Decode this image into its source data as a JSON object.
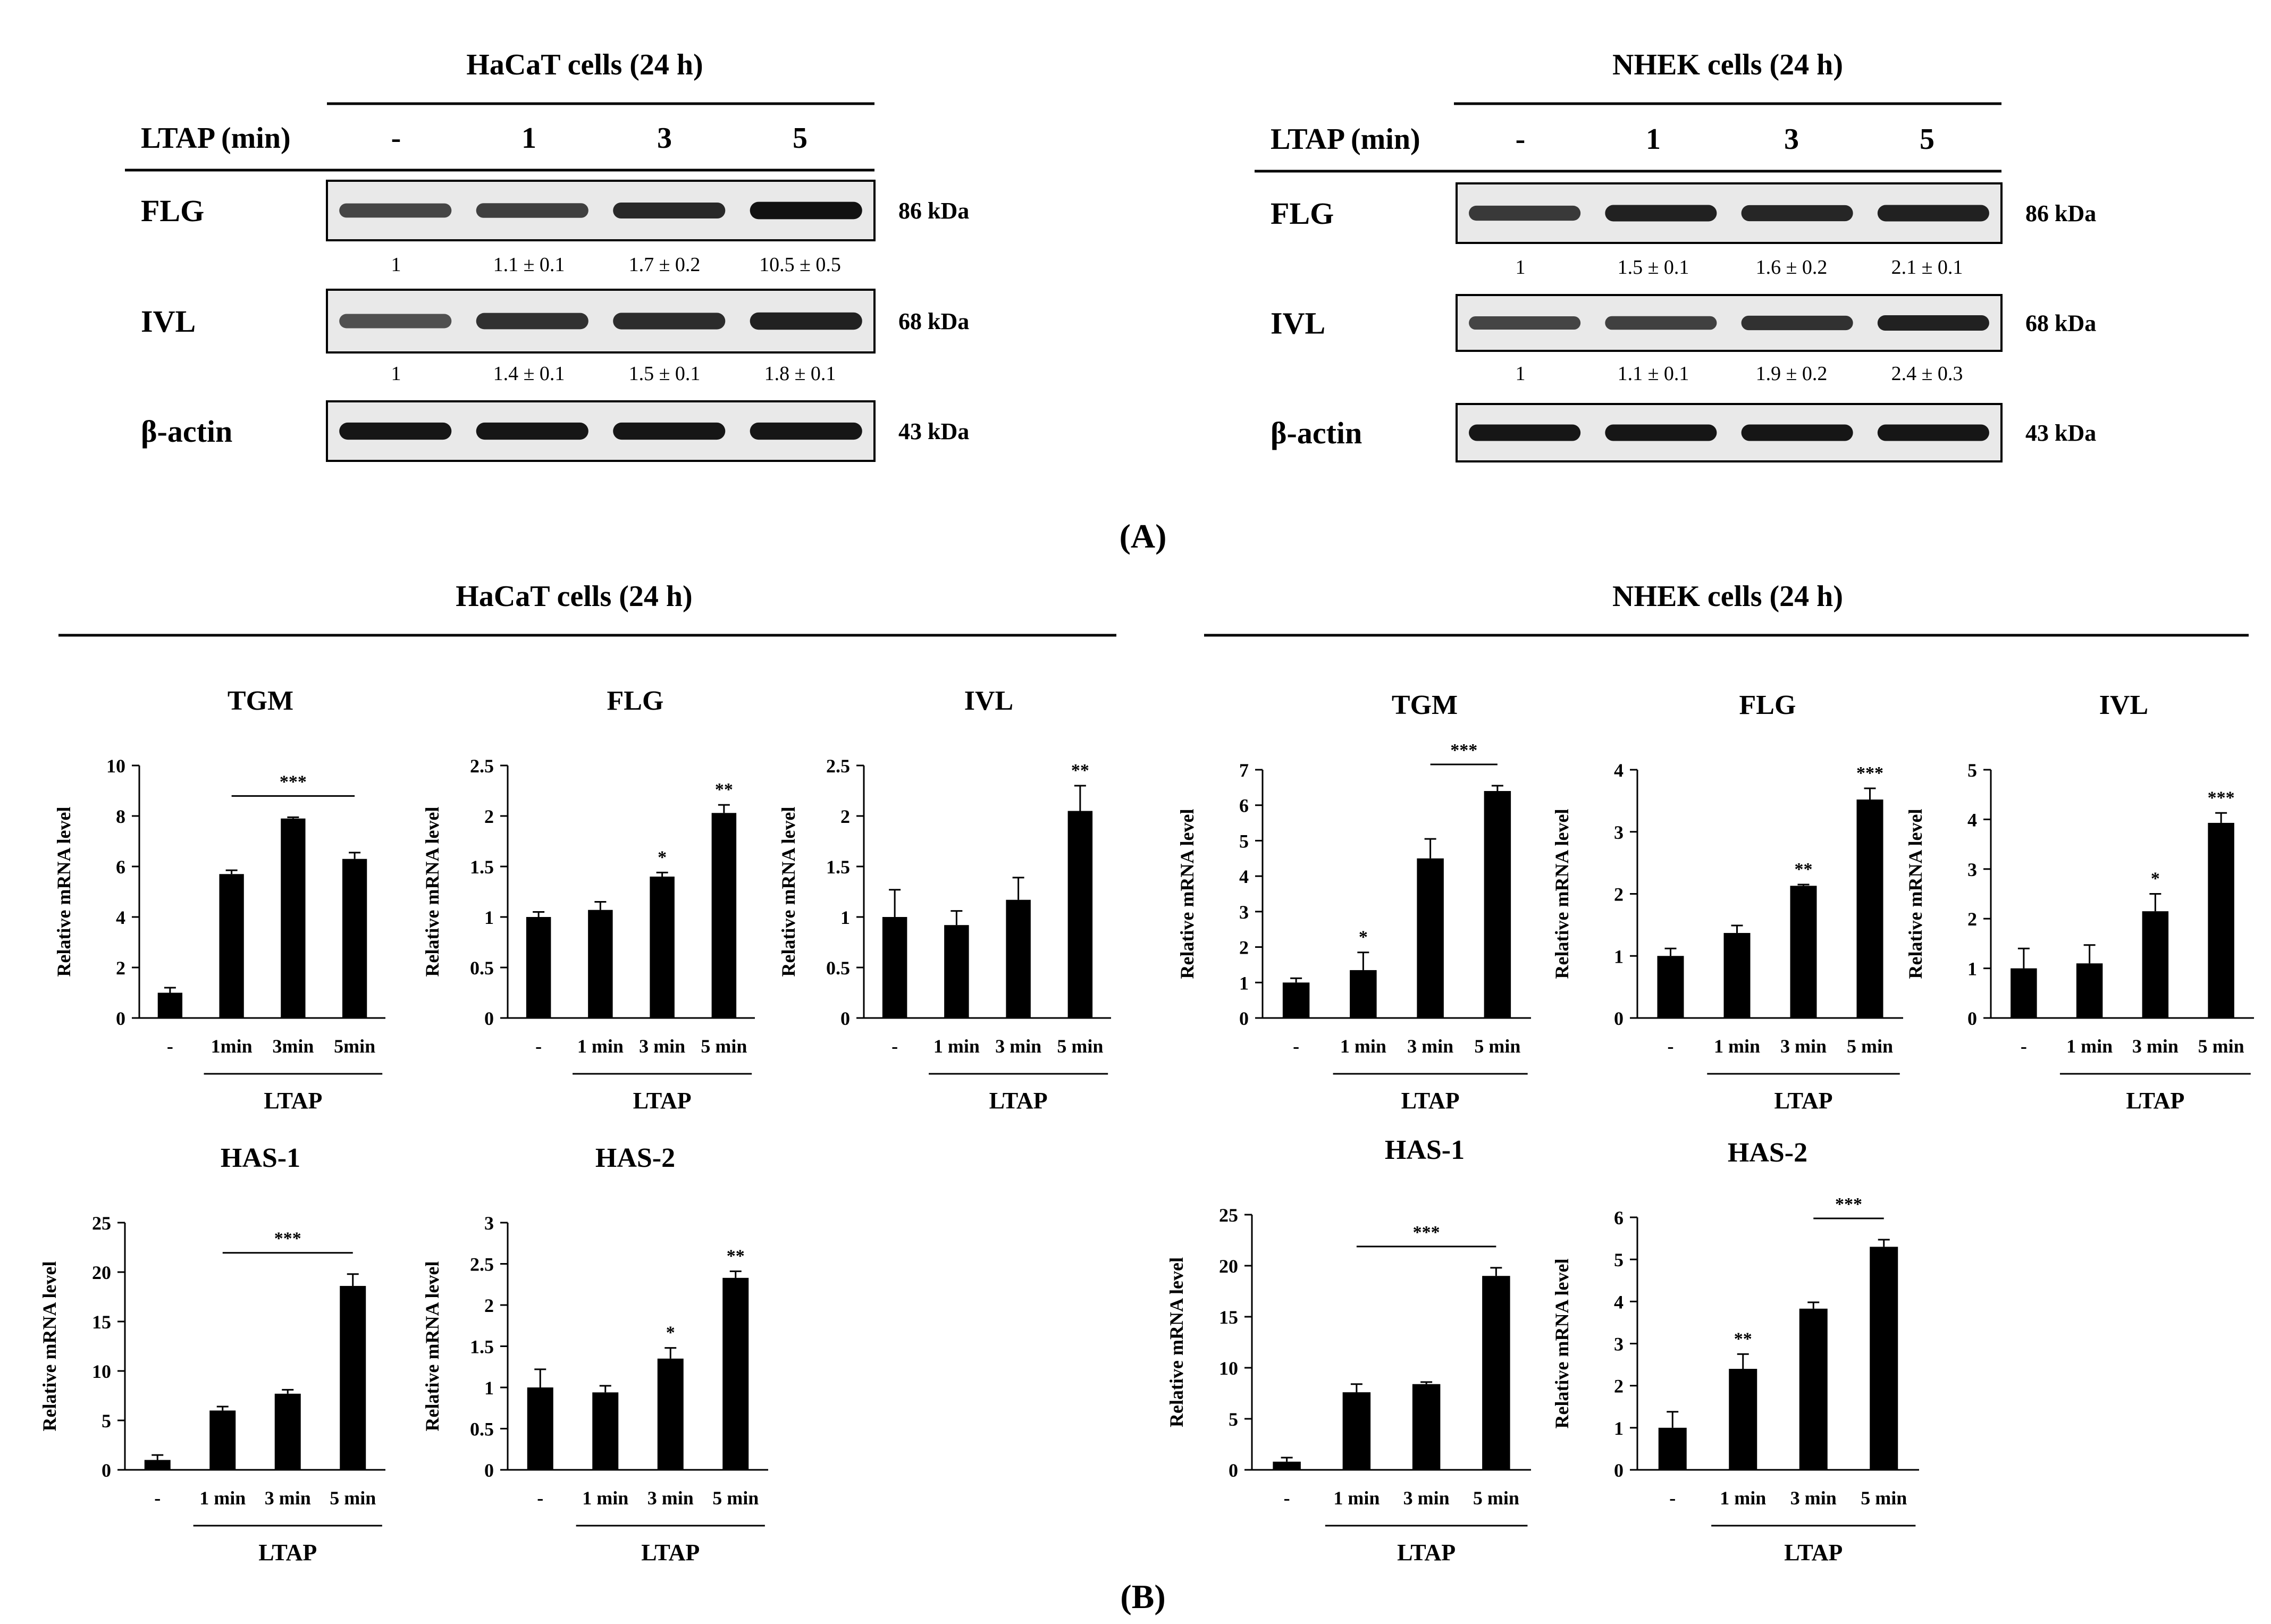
{
  "panel_a": {
    "label": "(A)",
    "treatment_label": "LTAP (min)",
    "lanes": [
      "-",
      "1",
      "3",
      "5"
    ],
    "blots": [
      {
        "title": "HaCaT cells (24 h)",
        "rows": [
          {
            "protein": "FLG",
            "kda": "86 kDa",
            "band_intensity": [
              0.62,
              0.66,
              0.8,
              0.95
            ],
            "quant": [
              "1",
              "1.1 ± 0.1",
              "1.7 ± 0.2",
              "10.5 ± 0.5"
            ]
          },
          {
            "protein": "IVL",
            "kda": "68 kDa",
            "band_intensity": [
              0.55,
              0.75,
              0.78,
              0.85
            ],
            "quant": [
              "1",
              "1.4 ± 0.1",
              "1.5 ± 0.1",
              "1.8 ± 0.1"
            ]
          },
          {
            "protein": "β-actin",
            "kda": "43 kDa",
            "band_intensity": [
              0.92,
              0.92,
              0.92,
              0.92
            ]
          }
        ]
      },
      {
        "title": "NHEK cells (24 h)",
        "rows": [
          {
            "protein": "FLG",
            "kda": "86 kDa",
            "band_intensity": [
              0.7,
              0.85,
              0.82,
              0.85
            ],
            "quant": [
              "1",
              "1.5 ± 0.1",
              "1.6 ± 0.2",
              "2.1 ± 0.1"
            ]
          },
          {
            "protein": "IVL",
            "kda": "68 kDa",
            "band_intensity": [
              0.62,
              0.65,
              0.75,
              0.85
            ],
            "quant": [
              "1",
              "1.1 ± 0.1",
              "1.9 ± 0.2",
              "2.4 ± 0.3"
            ]
          },
          {
            "protein": "β-actin",
            "kda": "43 kDa",
            "band_intensity": [
              0.92,
              0.92,
              0.92,
              0.92
            ]
          }
        ]
      }
    ]
  },
  "panel_b": {
    "label": "(B)",
    "group_titles": [
      "HaCaT cells (24 h)",
      "NHEK cells (24 h)"
    ]
  },
  "chart_data": [
    {
      "type": "bar",
      "group": "HaCaT cells (24 h)",
      "title": "TGM",
      "categories": [
        "-",
        "1min",
        "3min",
        "5min"
      ],
      "values": [
        1.0,
        5.7,
        7.9,
        6.3
      ],
      "errors": [
        0.2,
        0.15,
        0.05,
        0.25
      ],
      "ylabel": "Relative mRNA level",
      "ylim": [
        0,
        10
      ],
      "yticks": [
        "0",
        "2",
        "4",
        "6",
        "8",
        "10"
      ],
      "xgroup_label": "LTAP",
      "annotations": [
        {
          "text": "***",
          "from": 1,
          "to": 3
        }
      ]
    },
    {
      "type": "bar",
      "group": "HaCaT cells (24 h)",
      "title": "FLG",
      "categories": [
        "-",
        "1 min",
        "3 min",
        "5 min"
      ],
      "values": [
        1.0,
        1.07,
        1.4,
        2.03
      ],
      "errors": [
        0.05,
        0.08,
        0.04,
        0.08
      ],
      "ylabel": "Relative mRNA level",
      "ylim": [
        0,
        2.5
      ],
      "yticks": [
        "0",
        "0.5",
        "1",
        "1.5",
        "2",
        "2.5"
      ],
      "xgroup_label": "LTAP",
      "stars": [
        "",
        "",
        "*",
        "**"
      ]
    },
    {
      "type": "bar",
      "group": "HaCaT cells (24 h)",
      "title": "IVL",
      "categories": [
        "-",
        "1 min",
        "3 min",
        "5 min"
      ],
      "values": [
        1.0,
        0.92,
        1.17,
        2.05
      ],
      "errors": [
        0.27,
        0.14,
        0.22,
        0.25
      ],
      "ylabel": "Relative mRNA level",
      "ylim": [
        0,
        2.5
      ],
      "yticks": [
        "0",
        "0.5",
        "1",
        "1.5",
        "2",
        "2.5"
      ],
      "xgroup_label": "LTAP",
      "stars": [
        "",
        "",
        "",
        "**"
      ]
    },
    {
      "type": "bar",
      "group": "HaCaT cells (24 h)",
      "title": "HAS-1",
      "categories": [
        "-",
        "1 min",
        "3 min",
        "5 min"
      ],
      "values": [
        1.0,
        6.0,
        7.7,
        18.6
      ],
      "errors": [
        0.5,
        0.4,
        0.4,
        1.2
      ],
      "ylabel": "Relative mRNA level",
      "ylim": [
        0,
        25
      ],
      "yticks": [
        "0",
        "5",
        "10",
        "15",
        "20",
        "25"
      ],
      "xgroup_label": "LTAP",
      "annotations": [
        {
          "text": "***",
          "from": 1,
          "to": 3
        }
      ]
    },
    {
      "type": "bar",
      "group": "HaCaT cells (24 h)",
      "title": "HAS-2",
      "categories": [
        "-",
        "1 min",
        "3 min",
        "5 min"
      ],
      "values": [
        1.0,
        0.94,
        1.35,
        2.33
      ],
      "errors": [
        0.22,
        0.08,
        0.13,
        0.08
      ],
      "ylabel": "Relative mRNA level",
      "ylim": [
        0,
        3
      ],
      "yticks": [
        "0",
        "0.5",
        "1",
        "1.5",
        "2",
        "2.5",
        "3"
      ],
      "xgroup_label": "LTAP",
      "stars": [
        "",
        "",
        "*",
        "**"
      ]
    },
    {
      "type": "bar",
      "group": "NHEK cells (24 h)",
      "title": "TGM",
      "categories": [
        "-",
        "1 min",
        "3 min",
        "5 min"
      ],
      "values": [
        1.0,
        1.35,
        4.5,
        6.4
      ],
      "errors": [
        0.12,
        0.5,
        0.55,
        0.15
      ],
      "ylabel": "Relative mRNA level",
      "ylim": [
        0,
        7
      ],
      "yticks": [
        "0",
        "1",
        "2",
        "3",
        "4",
        "5",
        "6",
        "7"
      ],
      "xgroup_label": "LTAP",
      "stars": [
        "",
        "*",
        "",
        ""
      ],
      "annotations": [
        {
          "text": "***",
          "from": 2,
          "to": 3
        }
      ]
    },
    {
      "type": "bar",
      "group": "NHEK cells (24 h)",
      "title": "FLG",
      "categories": [
        "-",
        "1 min",
        "3 min",
        "5 min"
      ],
      "values": [
        1.0,
        1.37,
        2.13,
        3.52
      ],
      "errors": [
        0.12,
        0.12,
        0.02,
        0.18
      ],
      "ylabel": "Relative mRNA level",
      "ylim": [
        0,
        4
      ],
      "yticks": [
        "0",
        "1",
        "2",
        "3",
        "4"
      ],
      "xgroup_label": "LTAP",
      "stars": [
        "",
        "",
        "**",
        "***"
      ]
    },
    {
      "type": "bar",
      "group": "NHEK cells (24 h)",
      "title": "IVL",
      "categories": [
        "-",
        "1 min",
        "3 min",
        "5 min"
      ],
      "values": [
        1.0,
        1.1,
        2.15,
        3.93
      ],
      "errors": [
        0.4,
        0.37,
        0.35,
        0.2
      ],
      "ylabel": "Relative mRNA level",
      "ylim": [
        0,
        5
      ],
      "yticks": [
        "0",
        "1",
        "2",
        "3",
        "4",
        "5"
      ],
      "xgroup_label": "LTAP",
      "stars": [
        "",
        "",
        "*",
        "***"
      ]
    },
    {
      "type": "bar",
      "group": "NHEK cells (24 h)",
      "title": "HAS-1",
      "categories": [
        "-",
        "1 min",
        "3 min",
        "5 min"
      ],
      "values": [
        0.8,
        7.6,
        8.4,
        19.0
      ],
      "errors": [
        0.4,
        0.8,
        0.2,
        0.8
      ],
      "ylabel": "Relative mRNA level",
      "ylim": [
        0,
        25
      ],
      "yticks": [
        "0",
        "5",
        "10",
        "15",
        "20",
        "25"
      ],
      "xgroup_label": "LTAP",
      "annotations": [
        {
          "text": "***",
          "from": 1,
          "to": 3
        }
      ]
    },
    {
      "type": "bar",
      "group": "NHEK cells (24 h)",
      "title": "HAS-2",
      "categories": [
        "-",
        "1 min",
        "3 min",
        "5 min"
      ],
      "values": [
        1.0,
        2.4,
        3.83,
        5.3
      ],
      "errors": [
        0.38,
        0.35,
        0.15,
        0.17
      ],
      "ylabel": "Relative mRNA level",
      "ylim": [
        0,
        6
      ],
      "yticks": [
        "0",
        "1",
        "2",
        "3",
        "4",
        "5",
        "6"
      ],
      "xgroup_label": "LTAP",
      "stars": [
        "",
        "**",
        "",
        ""
      ],
      "annotations": [
        {
          "text": "***",
          "from": 2,
          "to": 3
        }
      ]
    }
  ]
}
